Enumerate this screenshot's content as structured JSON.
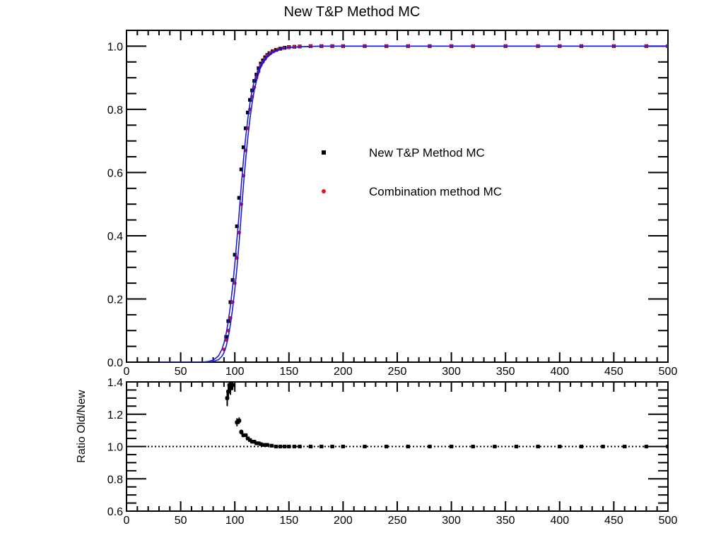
{
  "chart_data": [
    {
      "type": "scatter",
      "title": "New T&P Method MC",
      "xlabel": "",
      "ylabel": "",
      "xlim": [
        0,
        500
      ],
      "ylim": [
        0,
        1.05
      ],
      "xticks": [
        "0",
        "50",
        "100",
        "150",
        "200",
        "250",
        "300",
        "350",
        "400",
        "450",
        "500"
      ],
      "yticks": [
        "0.0",
        "0.2",
        "0.4",
        "0.6",
        "0.8",
        "1.0"
      ],
      "legend": {
        "placement": "center-right"
      },
      "series": [
        {
          "name": "New T&P Method MC",
          "color": "#000000",
          "marker": "square",
          "x": [
            92,
            94,
            96,
            98,
            100,
            102,
            104,
            106,
            108,
            110,
            112,
            114,
            116,
            118,
            120,
            122,
            124,
            126,
            128,
            130,
            132,
            135,
            138,
            142,
            146,
            150,
            155,
            160,
            170,
            180,
            190,
            200,
            220,
            240,
            260,
            280,
            300,
            320,
            350,
            380,
            400,
            420,
            450,
            480,
            500
          ],
          "y": [
            0.08,
            0.13,
            0.19,
            0.26,
            0.34,
            0.43,
            0.52,
            0.61,
            0.68,
            0.74,
            0.79,
            0.83,
            0.86,
            0.89,
            0.91,
            0.93,
            0.945,
            0.955,
            0.965,
            0.972,
            0.978,
            0.984,
            0.988,
            0.992,
            0.995,
            0.997,
            0.998,
            0.999,
            1.0,
            1.0,
            1.0,
            1.0,
            1.0,
            1.0,
            1.0,
            1.0,
            1.0,
            1.0,
            1.0,
            1.0,
            1.0,
            1.0,
            1.0,
            1.0,
            1.0
          ]
        },
        {
          "name": "Combination method MC",
          "color": "#e8101a",
          "marker": "star",
          "x": [
            90,
            92,
            94,
            96,
            98,
            100,
            102,
            104,
            106,
            108,
            110,
            112,
            114,
            116,
            118,
            120,
            122,
            124,
            126,
            128,
            130,
            133,
            136,
            140,
            145,
            150,
            155,
            160,
            170,
            180,
            190,
            200,
            220,
            240,
            260,
            280,
            300,
            320,
            350,
            380,
            400,
            420,
            450,
            480,
            500
          ],
          "y": [
            0.04,
            0.07,
            0.1,
            0.14,
            0.19,
            0.25,
            0.33,
            0.41,
            0.5,
            0.59,
            0.67,
            0.74,
            0.8,
            0.84,
            0.87,
            0.9,
            0.92,
            0.94,
            0.95,
            0.96,
            0.97,
            0.978,
            0.984,
            0.99,
            0.994,
            0.996,
            0.998,
            0.999,
            1.0,
            1.0,
            1.0,
            1.0,
            1.0,
            1.0,
            1.0,
            1.0,
            1.0,
            1.0,
            1.0,
            1.0,
            1.0,
            1.0,
            1.0,
            1.0,
            1.0
          ]
        },
        {
          "name": "",
          "type": "line",
          "color": "#1a1adc",
          "x": [
            30,
            60,
            70,
            75,
            80,
            85,
            88,
            90,
            92,
            94,
            96,
            98,
            100,
            102,
            104,
            106,
            108,
            110,
            112,
            114,
            116,
            118,
            120,
            123,
            126,
            130,
            135,
            140,
            145,
            150,
            160,
            170,
            180,
            200,
            300,
            400,
            500
          ],
          "y": [
            0.0,
            0.0,
            0.0,
            0.002,
            0.006,
            0.02,
            0.04,
            0.06,
            0.09,
            0.13,
            0.18,
            0.24,
            0.31,
            0.39,
            0.47,
            0.56,
            0.64,
            0.71,
            0.77,
            0.82,
            0.86,
            0.89,
            0.91,
            0.935,
            0.953,
            0.97,
            0.982,
            0.99,
            0.994,
            0.996,
            0.998,
            0.999,
            1.0,
            1.0,
            1.0,
            1.0,
            1.0
          ]
        },
        {
          "name": "",
          "type": "line",
          "color": "#1a1adc",
          "x": [
            30,
            60,
            70,
            75,
            80,
            85,
            88,
            90,
            92,
            94,
            96,
            98,
            100,
            102,
            104,
            106,
            108,
            110,
            112,
            114,
            116,
            118,
            120,
            123,
            126,
            130,
            135,
            140,
            145,
            150,
            160,
            170,
            180,
            200,
            300,
            400,
            500
          ],
          "y": [
            0.0,
            0.0,
            0.0,
            0.0,
            0.002,
            0.008,
            0.018,
            0.03,
            0.05,
            0.08,
            0.12,
            0.17,
            0.23,
            0.3,
            0.38,
            0.47,
            0.56,
            0.64,
            0.71,
            0.77,
            0.82,
            0.86,
            0.89,
            0.925,
            0.947,
            0.965,
            0.979,
            0.988,
            0.993,
            0.996,
            0.998,
            0.999,
            1.0,
            1.0,
            1.0,
            1.0,
            1.0
          ]
        }
      ]
    },
    {
      "type": "scatter",
      "title": "",
      "xlabel": "",
      "ylabel": "Ratio Old/New",
      "xlim": [
        0,
        500
      ],
      "ylim": [
        0.6,
        1.4
      ],
      "xticks": [
        "0",
        "50",
        "100",
        "150",
        "200",
        "250",
        "300",
        "350",
        "400",
        "450",
        "500"
      ],
      "yticks": [
        "0.6",
        "0.8",
        "1.0",
        "1.2",
        "1.4"
      ],
      "reference_line": {
        "y": 1.0,
        "style": "dotted"
      },
      "series": [
        {
          "name": "",
          "color": "#000000",
          "marker": "square-with-error",
          "x": [
            93,
            94,
            95,
            96,
            97,
            98,
            102,
            104,
            106,
            108,
            110,
            112,
            114,
            116,
            118,
            120,
            122,
            124,
            126,
            128,
            130,
            134,
            138,
            142,
            146,
            150,
            155,
            160,
            170,
            180,
            190,
            200,
            220,
            240,
            260,
            280,
            300,
            320,
            340,
            360,
            380,
            400,
            420,
            440,
            460,
            480,
            500
          ],
          "y": [
            1.3,
            1.34,
            1.38,
            1.36,
            1.4,
            1.38,
            1.15,
            1.16,
            1.09,
            1.07,
            1.07,
            1.05,
            1.04,
            1.03,
            1.03,
            1.02,
            1.02,
            1.015,
            1.01,
            1.01,
            1.01,
            1.005,
            1.0,
            1.0,
            1.0,
            1.0,
            1.0,
            1.0,
            1.0,
            1.0,
            1.0,
            1.0,
            1.0,
            1.0,
            1.0,
            1.0,
            1.0,
            1.0,
            1.0,
            1.0,
            1.0,
            1.0,
            1.0,
            1.0,
            1.0,
            1.0,
            1.0
          ],
          "err": [
            0.05,
            0.05,
            0.04,
            0.04,
            0.04,
            0.03,
            0.025,
            0.02,
            0.015,
            0.012,
            0.01,
            0.01,
            0.008,
            0.007,
            0.006,
            0.006,
            0.005,
            0.005,
            0.004,
            0.004,
            0.004,
            0.003,
            0.003,
            0.003,
            0.002,
            0.002,
            0.002,
            0.002,
            0.002,
            0.002,
            0.002,
            0.002,
            0.002,
            0.002,
            0.002,
            0.002,
            0.002,
            0.002,
            0.002,
            0.002,
            0.002,
            0.002,
            0.002,
            0.002,
            0.002,
            0.002,
            0.002
          ]
        }
      ]
    }
  ]
}
